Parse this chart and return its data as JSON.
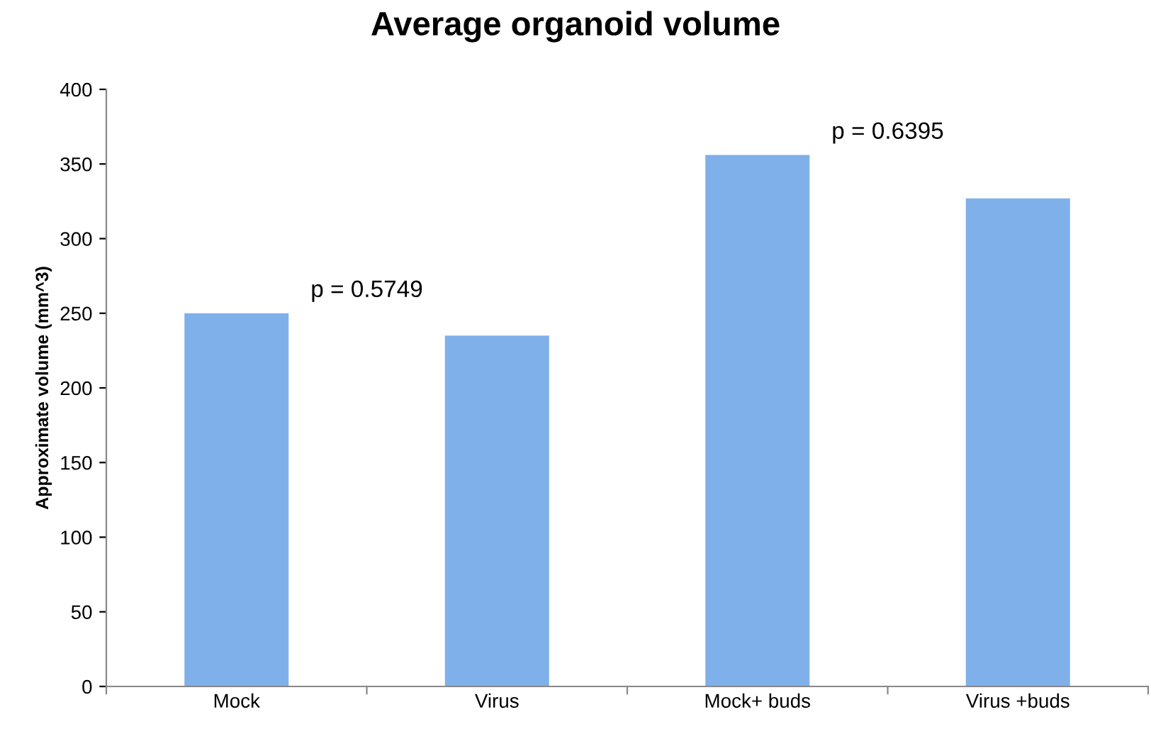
{
  "chart_data": {
    "type": "bar",
    "title": "Average organoid volume",
    "ylabel": "Approximate volume (mm^3)",
    "categories": [
      "Mock",
      "Virus",
      "Mock+ buds",
      "Virus +buds"
    ],
    "values": [
      250,
      235,
      356,
      327
    ],
    "color": "#7fb0ea",
    "ylim": [
      0,
      400
    ],
    "yticks": [
      0,
      50,
      100,
      150,
      200,
      250,
      300,
      350,
      400
    ],
    "grid": false,
    "annotations": [
      "p = 0.5749",
      "p = 0.6395"
    ]
  }
}
